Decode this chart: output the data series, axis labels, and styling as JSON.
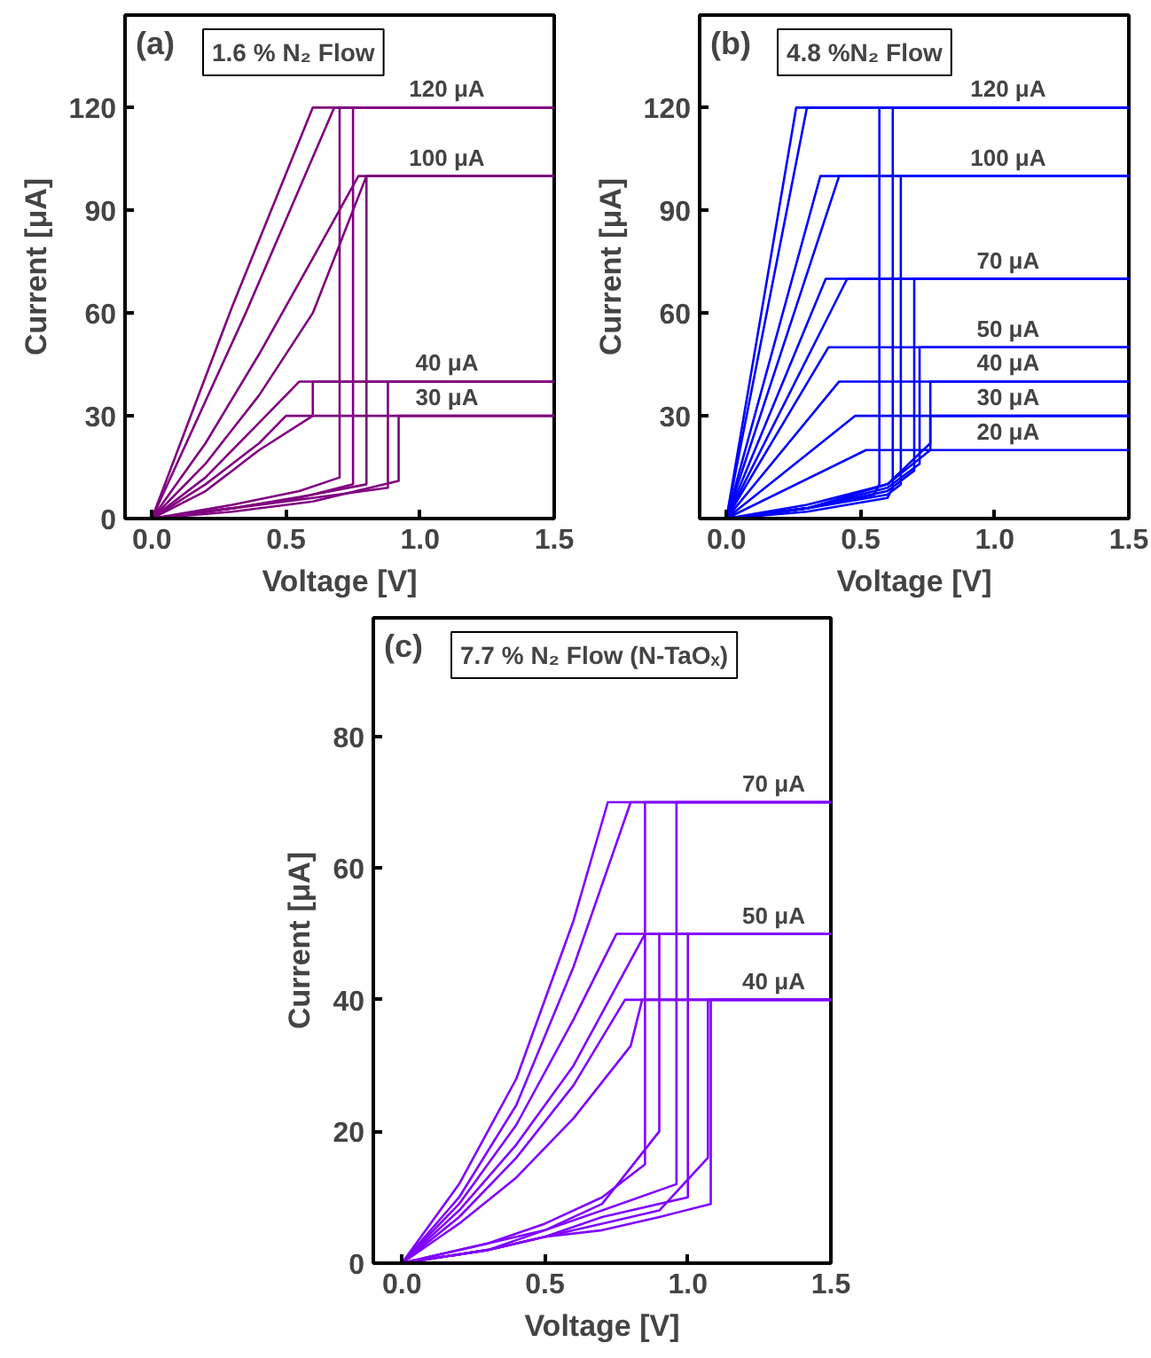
{
  "chart_data": [
    {
      "type": "line",
      "title": "1.6 % N₂ Flow",
      "xlabel": "Voltage [V]",
      "ylabel": "Current [μA]",
      "xlim": [
        -0.1,
        1.5
      ],
      "ylim": [
        0,
        147
      ],
      "xticks": [
        {
          "value": 0,
          "label": "0.0"
        },
        {
          "value": 0.5,
          "label": "0.5"
        },
        {
          "value": 1,
          "label": "1.0"
        },
        {
          "value": 1.5,
          "label": "1.5"
        }
      ],
      "yticks": [
        0,
        30,
        60,
        90,
        120
      ],
      "grid": false,
      "marker": "none",
      "line_style": "solid",
      "annotations": [
        "(a)",
        {
          "text": "120 μA",
          "x": 1.1,
          "y": 120
        },
        {
          "text": "100 μA",
          "x": 1.1,
          "y": 100
        },
        {
          "text": "40 μA",
          "x": 1.1,
          "y": 40
        },
        {
          "text": "30 μA",
          "x": 1.1,
          "y": 30
        }
      ],
      "series": [
        {
          "color": "#800080",
          "x": [
            0,
            0.3,
            0.6,
            1.5
          ],
          "values": [
            0,
            62,
            120,
            120
          ]
        },
        {
          "color": "#800080",
          "x": [
            0,
            0.35,
            0.68,
            1.5
          ],
          "values": [
            0,
            60,
            120,
            120
          ]
        },
        {
          "color": "#800080",
          "x": [
            0,
            0.3,
            0.55,
            0.7,
            0.7,
            1.5
          ],
          "values": [
            0,
            4,
            8,
            12,
            120,
            120
          ]
        },
        {
          "color": "#800080",
          "x": [
            0,
            0.3,
            0.55,
            0.75,
            0.75,
            1.5
          ],
          "values": [
            0,
            3,
            6,
            10,
            120,
            120
          ]
        },
        {
          "color": "#800080",
          "x": [
            0,
            0.2,
            0.4,
            0.6,
            0.77,
            1.5
          ],
          "values": [
            0,
            22,
            48,
            76,
            100,
            100
          ]
        },
        {
          "color": "#800080",
          "x": [
            0,
            0.2,
            0.4,
            0.6,
            0.8,
            1.5
          ],
          "values": [
            0,
            16,
            36,
            60,
            100,
            100
          ]
        },
        {
          "color": "#800080",
          "x": [
            0,
            0.3,
            0.6,
            0.8,
            0.8,
            1.5
          ],
          "values": [
            0,
            3,
            7,
            10,
            100,
            100
          ]
        },
        {
          "color": "#800080",
          "x": [
            0,
            0.2,
            0.4,
            0.55,
            1.5
          ],
          "values": [
            0,
            12,
            28,
            40,
            40
          ]
        },
        {
          "color": "#800080",
          "x": [
            0,
            0.2,
            0.4,
            0.6,
            0.6,
            1.5
          ],
          "values": [
            0,
            8,
            20,
            30,
            40,
            40
          ]
        },
        {
          "color": "#800080",
          "x": [
            0,
            0.3,
            0.6,
            0.88,
            0.88,
            1.5
          ],
          "values": [
            0,
            3,
            6,
            9,
            40,
            40
          ]
        },
        {
          "color": "#800080",
          "x": [
            0,
            0.2,
            0.4,
            0.5,
            1.5
          ],
          "values": [
            0,
            10,
            22,
            30,
            30
          ]
        },
        {
          "color": "#800080",
          "x": [
            0,
            0.3,
            0.6,
            0.92,
            0.92,
            1.5
          ],
          "values": [
            0,
            2,
            5,
            11,
            30,
            30
          ]
        }
      ]
    },
    {
      "type": "line",
      "title": "4.8 %N₂ Flow",
      "xlabel": "Voltage [V]",
      "ylabel": "Current [μA]",
      "xlim": [
        -0.1,
        1.5
      ],
      "ylim": [
        0,
        147
      ],
      "xticks": [
        {
          "value": 0,
          "label": "0.0"
        },
        {
          "value": 0.5,
          "label": "0.5"
        },
        {
          "value": 1,
          "label": "1.0"
        },
        {
          "value": 1.5,
          "label": "1.5"
        }
      ],
      "yticks": [
        30,
        60,
        90,
        120
      ],
      "grid": false,
      "marker": "none",
      "line_style": "solid",
      "annotations": [
        "(b)",
        {
          "text": "120 μA",
          "x": 1.05,
          "y": 120
        },
        {
          "text": "100 μA",
          "x": 1.05,
          "y": 100
        },
        {
          "text": "70 μA",
          "x": 1.05,
          "y": 70
        },
        {
          "text": "50 μA",
          "x": 1.05,
          "y": 50
        },
        {
          "text": "40 μA",
          "x": 1.05,
          "y": 40
        },
        {
          "text": "30 μA",
          "x": 1.05,
          "y": 30
        },
        {
          "text": "20 μA",
          "x": 1.05,
          "y": 20
        }
      ],
      "series": [
        {
          "color": "#0000ff",
          "x": [
            0,
            0.26,
            1.5
          ],
          "values": [
            0,
            120,
            120
          ]
        },
        {
          "color": "#0000ff",
          "x": [
            0,
            0.3,
            1.5
          ],
          "values": [
            0,
            120,
            120
          ]
        },
        {
          "color": "#0000ff",
          "x": [
            0,
            0.35,
            1.5
          ],
          "values": [
            0,
            100,
            100
          ]
        },
        {
          "color": "#0000ff",
          "x": [
            0,
            0.42,
            1.5
          ],
          "values": [
            0,
            100,
            100
          ]
        },
        {
          "color": "#0000ff",
          "x": [
            0,
            0.37,
            1.5
          ],
          "values": [
            0,
            70,
            70
          ]
        },
        {
          "color": "#0000ff",
          "x": [
            0,
            0.45,
            1.5
          ],
          "values": [
            0,
            70,
            70
          ]
        },
        {
          "color": "#0000ff",
          "x": [
            0,
            0.38,
            1.5
          ],
          "values": [
            0,
            50,
            50
          ]
        },
        {
          "color": "#0000ff",
          "x": [
            0,
            0.42,
            1.5
          ],
          "values": [
            0,
            40,
            40
          ]
        },
        {
          "color": "#0000ff",
          "x": [
            0,
            0.48,
            1.5
          ],
          "values": [
            0,
            30,
            30
          ]
        },
        {
          "color": "#0000ff",
          "x": [
            0,
            0.52,
            1.5
          ],
          "values": [
            0,
            20,
            20
          ]
        },
        {
          "color": "#0000ff",
          "x": [
            0,
            0.3,
            0.55,
            0.57,
            0.57,
            1.5
          ],
          "values": [
            0,
            3,
            7,
            10,
            120,
            120
          ]
        },
        {
          "color": "#0000ff",
          "x": [
            0,
            0.3,
            0.6,
            0.62,
            0.62,
            1.5
          ],
          "values": [
            0,
            2,
            6,
            9,
            120,
            120
          ]
        },
        {
          "color": "#0000ff",
          "x": [
            0,
            0.3,
            0.6,
            0.65,
            0.65,
            1.5
          ],
          "values": [
            0,
            3,
            7,
            10,
            100,
            100
          ]
        },
        {
          "color": "#0000ff",
          "x": [
            0,
            0.3,
            0.6,
            0.7,
            0.7,
            1.5
          ],
          "values": [
            0,
            3,
            8,
            14,
            70,
            70
          ]
        },
        {
          "color": "#0000ff",
          "x": [
            0,
            0.3,
            0.6,
            0.72,
            0.72,
            1.5
          ],
          "values": [
            0,
            3,
            9,
            16,
            50,
            50
          ]
        },
        {
          "color": "#0000ff",
          "x": [
            0,
            0.3,
            0.6,
            0.76,
            0.76,
            1.5
          ],
          "values": [
            0,
            3,
            10,
            22,
            40,
            40
          ]
        },
        {
          "color": "#0000ff",
          "x": [
            0,
            0.3,
            0.6,
            0.76,
            0.76,
            1.5
          ],
          "values": [
            0,
            4,
            10,
            20,
            30,
            30
          ]
        }
      ]
    },
    {
      "type": "line",
      "title": "7.7 % N₂ Flow (N-TaOₓ)",
      "xlabel": "Voltage [V]",
      "ylabel": "Current [μA]",
      "xlim": [
        -0.1,
        1.5
      ],
      "ylim": [
        0,
        98
      ],
      "xticks": [
        {
          "value": 0,
          "label": "0.0"
        },
        {
          "value": 0.5,
          "label": "0.5"
        },
        {
          "value": 1,
          "label": "1.0"
        },
        {
          "value": 1.5,
          "label": "1.5"
        }
      ],
      "yticks": [
        0,
        20,
        40,
        60,
        80
      ],
      "grid": false,
      "marker": "none",
      "line_style": "solid",
      "annotations": [
        "(c)",
        {
          "text": "70 μA",
          "x": 1.3,
          "y": 70
        },
        {
          "text": "50 μA",
          "x": 1.3,
          "y": 50
        },
        {
          "text": "40 μA",
          "x": 1.3,
          "y": 40
        }
      ],
      "series": [
        {
          "color": "#8000ff",
          "x": [
            0,
            0.2,
            0.4,
            0.6,
            0.72,
            1.5
          ],
          "values": [
            0,
            12,
            28,
            52,
            70,
            70
          ]
        },
        {
          "color": "#8000ff",
          "x": [
            0,
            0.2,
            0.4,
            0.6,
            0.8,
            1.5
          ],
          "values": [
            0,
            10,
            24,
            45,
            70,
            70
          ]
        },
        {
          "color": "#8000ff",
          "x": [
            0,
            0.2,
            0.4,
            0.6,
            0.75,
            1.5
          ],
          "values": [
            0,
            9,
            21,
            37,
            50,
            50
          ]
        },
        {
          "color": "#8000ff",
          "x": [
            0,
            0.2,
            0.4,
            0.6,
            0.85,
            1.5
          ],
          "values": [
            0,
            8,
            18,
            30,
            50,
            50
          ]
        },
        {
          "color": "#8000ff",
          "x": [
            0,
            0.2,
            0.4,
            0.6,
            0.78,
            1.5
          ],
          "values": [
            0,
            7,
            16,
            27,
            40,
            40
          ]
        },
        {
          "color": "#8000ff",
          "x": [
            0,
            0.2,
            0.4,
            0.6,
            0.8,
            0.84,
            1.5
          ],
          "values": [
            0,
            6,
            13,
            22,
            33,
            40,
            40
          ]
        },
        {
          "color": "#8000ff",
          "x": [
            0,
            0.3,
            0.5,
            0.7,
            0.85,
            0.85,
            1.5
          ],
          "values": [
            0,
            3,
            6,
            10,
            15,
            70,
            70
          ]
        },
        {
          "color": "#8000ff",
          "x": [
            0,
            0.3,
            0.5,
            0.7,
            0.96,
            0.96,
            1.5
          ],
          "values": [
            0,
            2,
            5,
            8,
            12,
            70,
            70
          ]
        },
        {
          "color": "#8000ff",
          "x": [
            0,
            0.3,
            0.5,
            0.7,
            0.9,
            0.9,
            1.5
          ],
          "values": [
            0,
            3,
            5,
            9,
            20,
            50,
            50
          ]
        },
        {
          "color": "#8000ff",
          "x": [
            0,
            0.3,
            0.5,
            0.7,
            1.0,
            1.0,
            1.5
          ],
          "values": [
            0,
            2,
            4,
            7,
            10,
            50,
            50
          ]
        },
        {
          "color": "#8000ff",
          "x": [
            0,
            0.3,
            0.5,
            0.7,
            0.9,
            1.07,
            1.07,
            1.5
          ],
          "values": [
            0,
            2,
            4,
            6,
            8,
            16,
            40,
            40
          ]
        },
        {
          "color": "#8000ff",
          "x": [
            0,
            0.3,
            0.5,
            0.7,
            0.9,
            1.08,
            1.08,
            1.5
          ],
          "values": [
            0,
            2,
            4,
            5,
            7,
            9,
            40,
            40
          ]
        }
      ]
    }
  ]
}
